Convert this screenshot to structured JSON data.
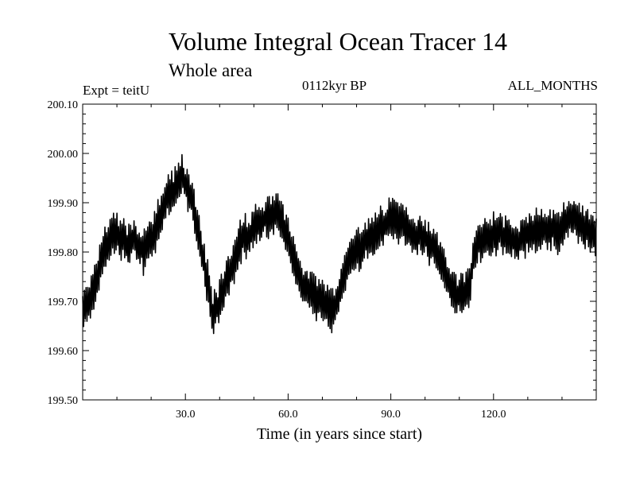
{
  "chart_data": {
    "type": "line",
    "title": "Volume Integral Ocean Tracer 14",
    "subtitle": "Whole area",
    "annotations": {
      "expt": "Expt = teitU",
      "period": "0112kyr BP",
      "months": "ALL_MONTHS"
    },
    "xlabel": "Time (in years since start)",
    "ylabel": "",
    "xlim": [
      0,
      150
    ],
    "ylim": [
      199.5,
      200.1
    ],
    "x_ticks": [
      30,
      60,
      90,
      120
    ],
    "x_tick_labels": [
      "30.0",
      "60.0",
      "90.0",
      "120.0"
    ],
    "y_ticks": [
      199.5,
      199.6,
      199.7,
      199.8,
      199.9,
      200.0,
      200.1
    ],
    "y_tick_labels": [
      "199.50",
      "199.60",
      "199.70",
      "199.80",
      "199.90",
      "200.00",
      "200.10"
    ],
    "grid": false,
    "series": [
      {
        "name": "Volume Integral Ocean Tracer 14",
        "color": "#000000",
        "trend_x": [
          0,
          3,
          6,
          9,
          12,
          15,
          18,
          21,
          24,
          27,
          29,
          31,
          34,
          37,
          38,
          40,
          43,
          46,
          49,
          52,
          55,
          58,
          61,
          64,
          67,
          70,
          73,
          75,
          78,
          81,
          84,
          87,
          90,
          93,
          96,
          99,
          102,
          105,
          108,
          111,
          113,
          115,
          118,
          121,
          124,
          127,
          130,
          133,
          136,
          139,
          142,
          145,
          148,
          150
        ],
        "trend_y": [
          199.68,
          199.71,
          199.8,
          199.84,
          199.82,
          199.82,
          199.8,
          199.84,
          199.9,
          199.93,
          199.95,
          199.93,
          199.83,
          199.72,
          199.67,
          199.7,
          199.76,
          199.82,
          199.84,
          199.86,
          199.88,
          199.87,
          199.8,
          199.74,
          199.72,
          199.7,
          199.68,
          199.72,
          199.79,
          199.81,
          199.83,
          199.85,
          199.87,
          199.86,
          199.84,
          199.83,
          199.82,
          199.77,
          199.72,
          199.71,
          199.74,
          199.82,
          199.83,
          199.84,
          199.83,
          199.82,
          199.84,
          199.84,
          199.85,
          199.84,
          199.87,
          199.86,
          199.84,
          199.82
        ],
        "oscillation_amplitude": 0.05,
        "samples_per_year": 4
      }
    ]
  }
}
